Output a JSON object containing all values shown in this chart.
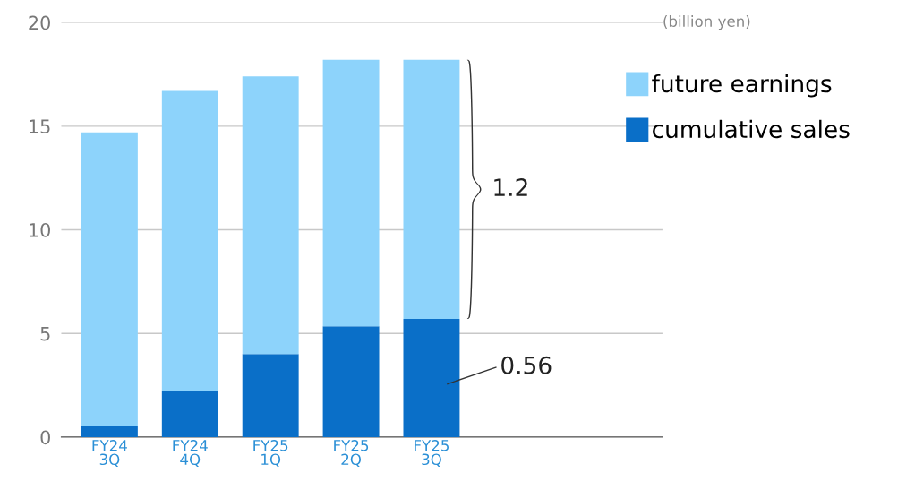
{
  "chart_data": {
    "type": "bar",
    "stacked": true,
    "categories": [
      "FY24\n3Q",
      "FY24\n4Q",
      "FY25\n1Q",
      "FY25\n2Q",
      "FY25\n3Q"
    ],
    "series": [
      {
        "name": "cumulative sales",
        "color": "#0a6fc8",
        "values": [
          0.56,
          2.2,
          4.0,
          5.35,
          5.7
        ]
      },
      {
        "name": "future earnings",
        "color": "#8dd3fb",
        "values": [
          14.14,
          14.5,
          13.4,
          12.85,
          12.5
        ]
      }
    ],
    "ylim": [
      0,
      20
    ],
    "yticks": [
      0,
      5,
      10,
      15,
      20
    ],
    "grid": "y",
    "legend": "top right",
    "annotations": [
      "0.56",
      "(billion yen)",
      "1.2"
    ]
  }
}
